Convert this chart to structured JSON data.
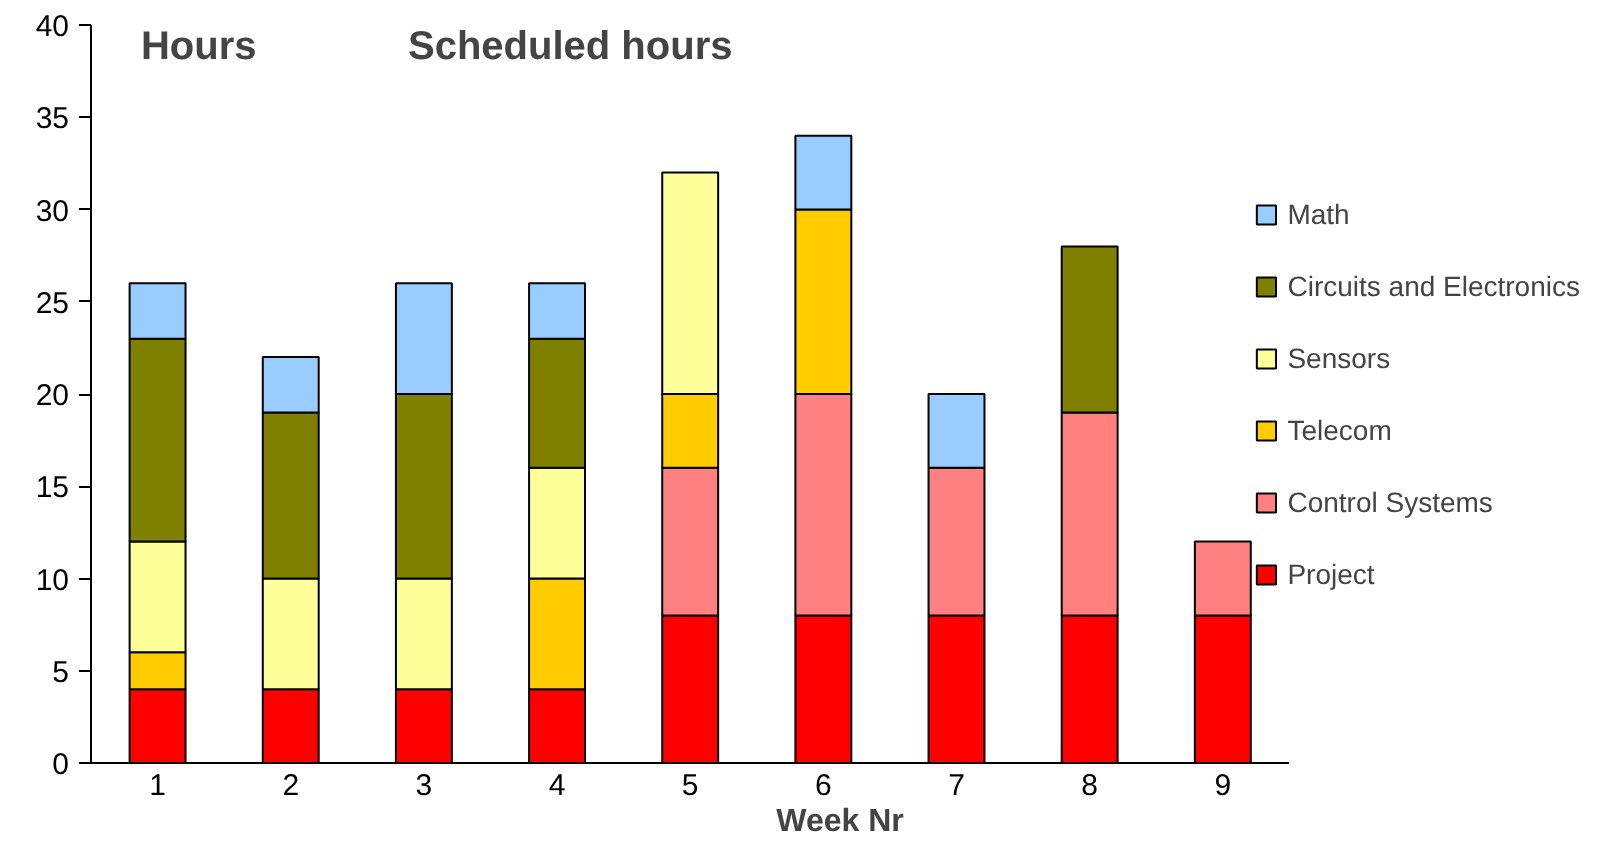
{
  "chart_data": {
    "type": "bar",
    "title": "Scheduled hours",
    "ylabel": "Hours",
    "xlabel": "Week Nr",
    "stacked": true,
    "categories": [
      "1",
      "2",
      "3",
      "4",
      "5",
      "6",
      "7",
      "8",
      "9"
    ],
    "series": [
      {
        "name": "Project",
        "color": "#ff0000",
        "values": [
          4,
          4,
          4,
          4,
          8,
          8,
          8,
          8,
          8
        ]
      },
      {
        "name": "Control Systems",
        "color": "#ff8080",
        "values": [
          null,
          null,
          null,
          null,
          8,
          12,
          8,
          11,
          4
        ]
      },
      {
        "name": "Telecom",
        "color": "#ffcc00",
        "values": [
          2,
          null,
          null,
          6,
          4,
          10,
          null,
          null,
          null
        ]
      },
      {
        "name": "Sensors",
        "color": "#ffff99",
        "values": [
          6,
          6,
          6,
          6,
          12,
          null,
          null,
          null,
          null
        ]
      },
      {
        "name": "Circuits and Electronics",
        "color": "#808000",
        "values": [
          11,
          9,
          10,
          7,
          null,
          null,
          null,
          9,
          null
        ]
      },
      {
        "name": "Math",
        "color": "#99ccff",
        "values": [
          3,
          3,
          6,
          3,
          null,
          4,
          4,
          null,
          null
        ]
      }
    ],
    "ylim": [
      0,
      40
    ],
    "yticks": [
      0,
      5,
      10,
      15,
      20,
      25,
      30,
      35,
      40
    ],
    "grid": false,
    "legend": "right"
  }
}
